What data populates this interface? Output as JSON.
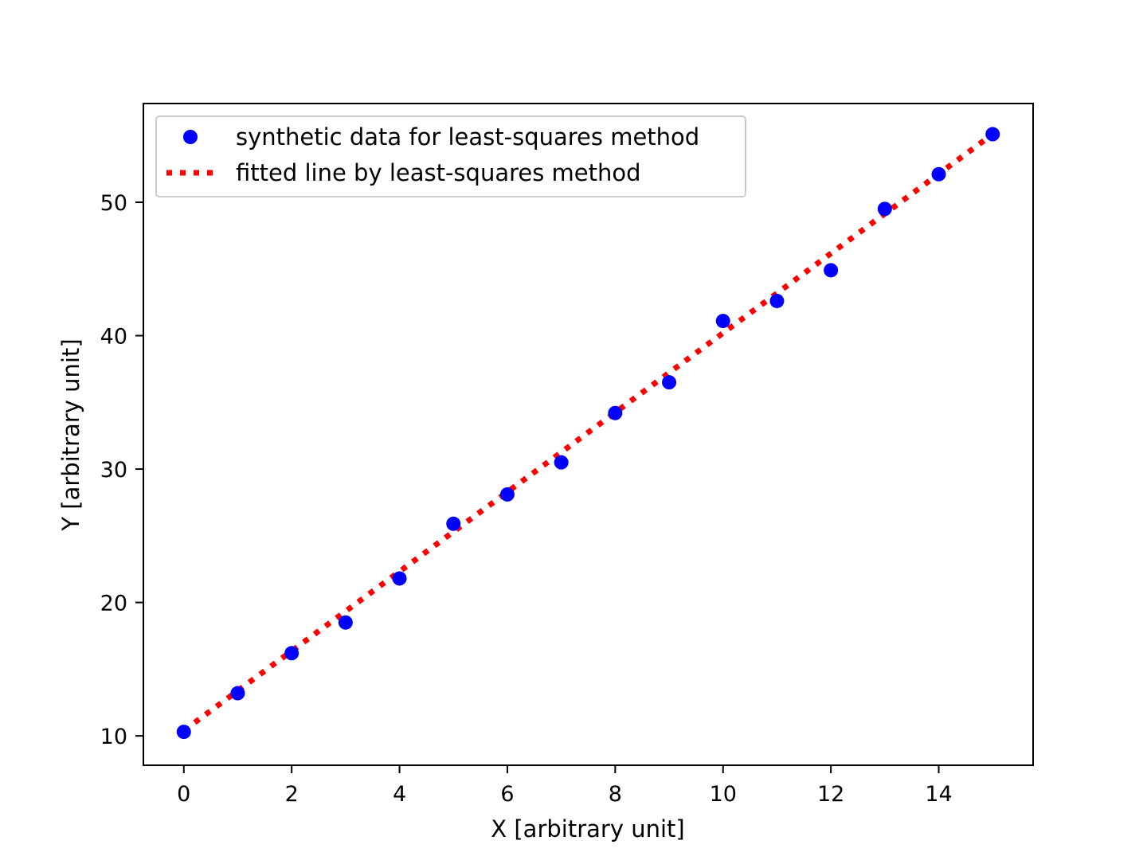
{
  "chart_data": {
    "type": "scatter",
    "title": "",
    "xlabel": "X [arbitrary unit]",
    "ylabel": "Y [arbitrary unit]",
    "xlim": [
      -0.75,
      15.75
    ],
    "ylim": [
      7.8,
      57.4
    ],
    "xticks": [
      0,
      2,
      4,
      6,
      8,
      10,
      12,
      14
    ],
    "yticks": [
      10,
      20,
      30,
      40,
      50
    ],
    "grid": false,
    "legend_position": "upper-left",
    "series": [
      {
        "name": "synthetic data for least-squares method",
        "kind": "points",
        "color": "#0000ff",
        "x": [
          0,
          1,
          2,
          3,
          4,
          5,
          6,
          7,
          8,
          9,
          10,
          11,
          12,
          13,
          14,
          15
        ],
        "y": [
          10.3,
          13.2,
          16.2,
          18.5,
          21.8,
          25.9,
          28.1,
          30.5,
          34.2,
          36.5,
          41.1,
          42.6,
          44.9,
          49.5,
          52.1,
          55.1
        ]
      },
      {
        "name": "fitted line by least-squares method",
        "kind": "dotted-line",
        "color": "#ff0000",
        "x": [
          0,
          15
        ],
        "y": [
          10.4,
          55.1
        ]
      }
    ]
  }
}
